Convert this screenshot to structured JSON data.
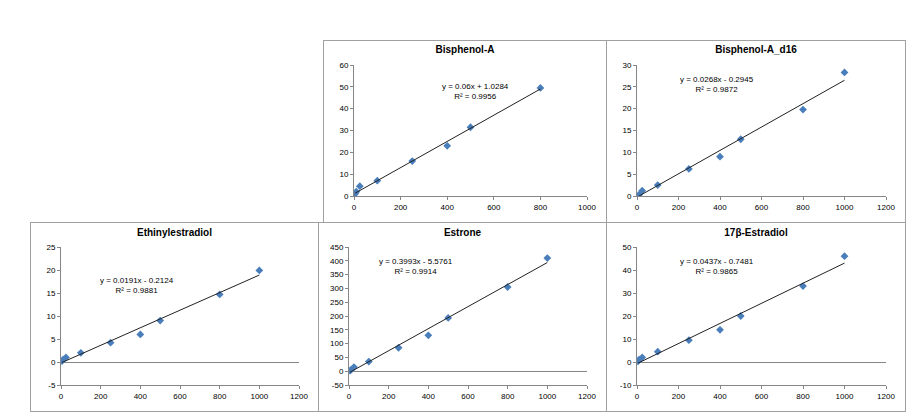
{
  "chart_data": [
    {
      "type": "scatter",
      "title": "Bisphenol-A",
      "series": [
        {
          "type": "scatter",
          "marker": "diamond",
          "color": "#4a7ebb",
          "x": [
            5,
            10,
            25,
            100,
            250,
            400,
            500,
            800
          ],
          "values": [
            1,
            2,
            4.5,
            7,
            16,
            23,
            31.5,
            49.5
          ]
        },
        {
          "type": "line",
          "line_style": "solid",
          "color": "#222222",
          "x": [
            5,
            800
          ],
          "values": [
            1.3,
            49
          ]
        }
      ],
      "annotations": [
        "y = 0.06x + 1.0284",
        "R² = 0.9956"
      ],
      "xlim": [
        0,
        1000
      ],
      "xticks": [
        0,
        200,
        400,
        600,
        800,
        1000
      ],
      "ylim": [
        0,
        60
      ],
      "yticks": [
        0,
        10,
        20,
        30,
        40,
        50,
        60
      ],
      "grid": false
    },
    {
      "type": "scatter",
      "title": "Bisphenol-A_d16",
      "series": [
        {
          "type": "scatter",
          "marker": "diamond",
          "color": "#4a7ebb",
          "x": [
            10,
            25,
            100,
            250,
            400,
            500,
            800,
            1000
          ],
          "values": [
            0.3,
            1.2,
            2.5,
            6.2,
            9,
            13,
            19.8,
            28.3
          ]
        },
        {
          "type": "line",
          "line_style": "solid",
          "color": "#222222",
          "x": [
            10,
            1000
          ],
          "values": [
            0,
            26.5
          ]
        }
      ],
      "annotations": [
        "y = 0.0268x - 0.2945",
        "R² = 0.9872"
      ],
      "xlim": [
        0,
        1200
      ],
      "xticks": [
        0,
        200,
        400,
        600,
        800,
        1000,
        1200
      ],
      "ylim": [
        0,
        30
      ],
      "yticks": [
        0,
        5,
        10,
        15,
        20,
        25,
        30
      ],
      "grid": false
    },
    {
      "type": "scatter",
      "title": "Ethinylestradiol",
      "series": [
        {
          "type": "scatter",
          "marker": "diamond",
          "color": "#4a7ebb",
          "x": [
            5,
            10,
            25,
            100,
            250,
            400,
            500,
            800,
            1000
          ],
          "values": [
            0.2,
            0.5,
            1,
            2,
            4.2,
            6,
            9,
            14.7,
            19.9
          ]
        },
        {
          "type": "line",
          "line_style": "solid",
          "color": "#222222",
          "x": [
            5,
            1000
          ],
          "values": [
            -0.1,
            18.9
          ]
        }
      ],
      "annotations": [
        "y = 0.0191x - 0.2124",
        "R² = 0.9881"
      ],
      "xlim": [
        0,
        1200
      ],
      "xticks": [
        0,
        200,
        400,
        600,
        800,
        1000,
        1200
      ],
      "ylim": [
        -5,
        25
      ],
      "yticks": [
        -5,
        0,
        5,
        10,
        15,
        20,
        25
      ],
      "grid": false
    },
    {
      "type": "scatter",
      "title": "Estrone",
      "series": [
        {
          "type": "scatter",
          "marker": "diamond",
          "color": "#4a7ebb",
          "x": [
            5,
            10,
            25,
            100,
            250,
            400,
            500,
            800,
            1000
          ],
          "values": [
            2,
            5,
            15,
            35,
            85,
            130,
            193,
            305,
            410
          ]
        },
        {
          "type": "line",
          "line_style": "solid",
          "color": "#222222",
          "x": [
            5,
            1000
          ],
          "values": [
            -3.6,
            393.7
          ]
        }
      ],
      "annotations": [
        "y = 0.3993x - 5.5761",
        "R² = 0.9914"
      ],
      "xlim": [
        0,
        1200
      ],
      "xticks": [
        0,
        200,
        400,
        600,
        800,
        1000,
        1200
      ],
      "ylim": [
        -50,
        450
      ],
      "yticks": [
        -50,
        0,
        50,
        100,
        150,
        200,
        250,
        300,
        350,
        400,
        450
      ],
      "grid": false
    },
    {
      "type": "scatter",
      "title": "17β-Estradiol",
      "series": [
        {
          "type": "scatter",
          "marker": "diamond",
          "color": "#4a7ebb",
          "x": [
            5,
            10,
            25,
            100,
            250,
            400,
            500,
            800,
            1000
          ],
          "values": [
            0.3,
            1,
            2,
            4.5,
            9.5,
            14,
            20,
            33,
            46
          ]
        },
        {
          "type": "line",
          "line_style": "solid",
          "color": "#222222",
          "x": [
            5,
            1000
          ],
          "values": [
            -0.5,
            43
          ]
        }
      ],
      "annotations": [
        "y = 0.0437x - 0.7481",
        "R² = 0.9865"
      ],
      "xlim": [
        0,
        1200
      ],
      "xticks": [
        0,
        200,
        400,
        600,
        800,
        1000,
        1200
      ],
      "ylim": [
        -10,
        50
      ],
      "yticks": [
        -10,
        0,
        10,
        20,
        30,
        40,
        50
      ],
      "grid": false
    }
  ]
}
